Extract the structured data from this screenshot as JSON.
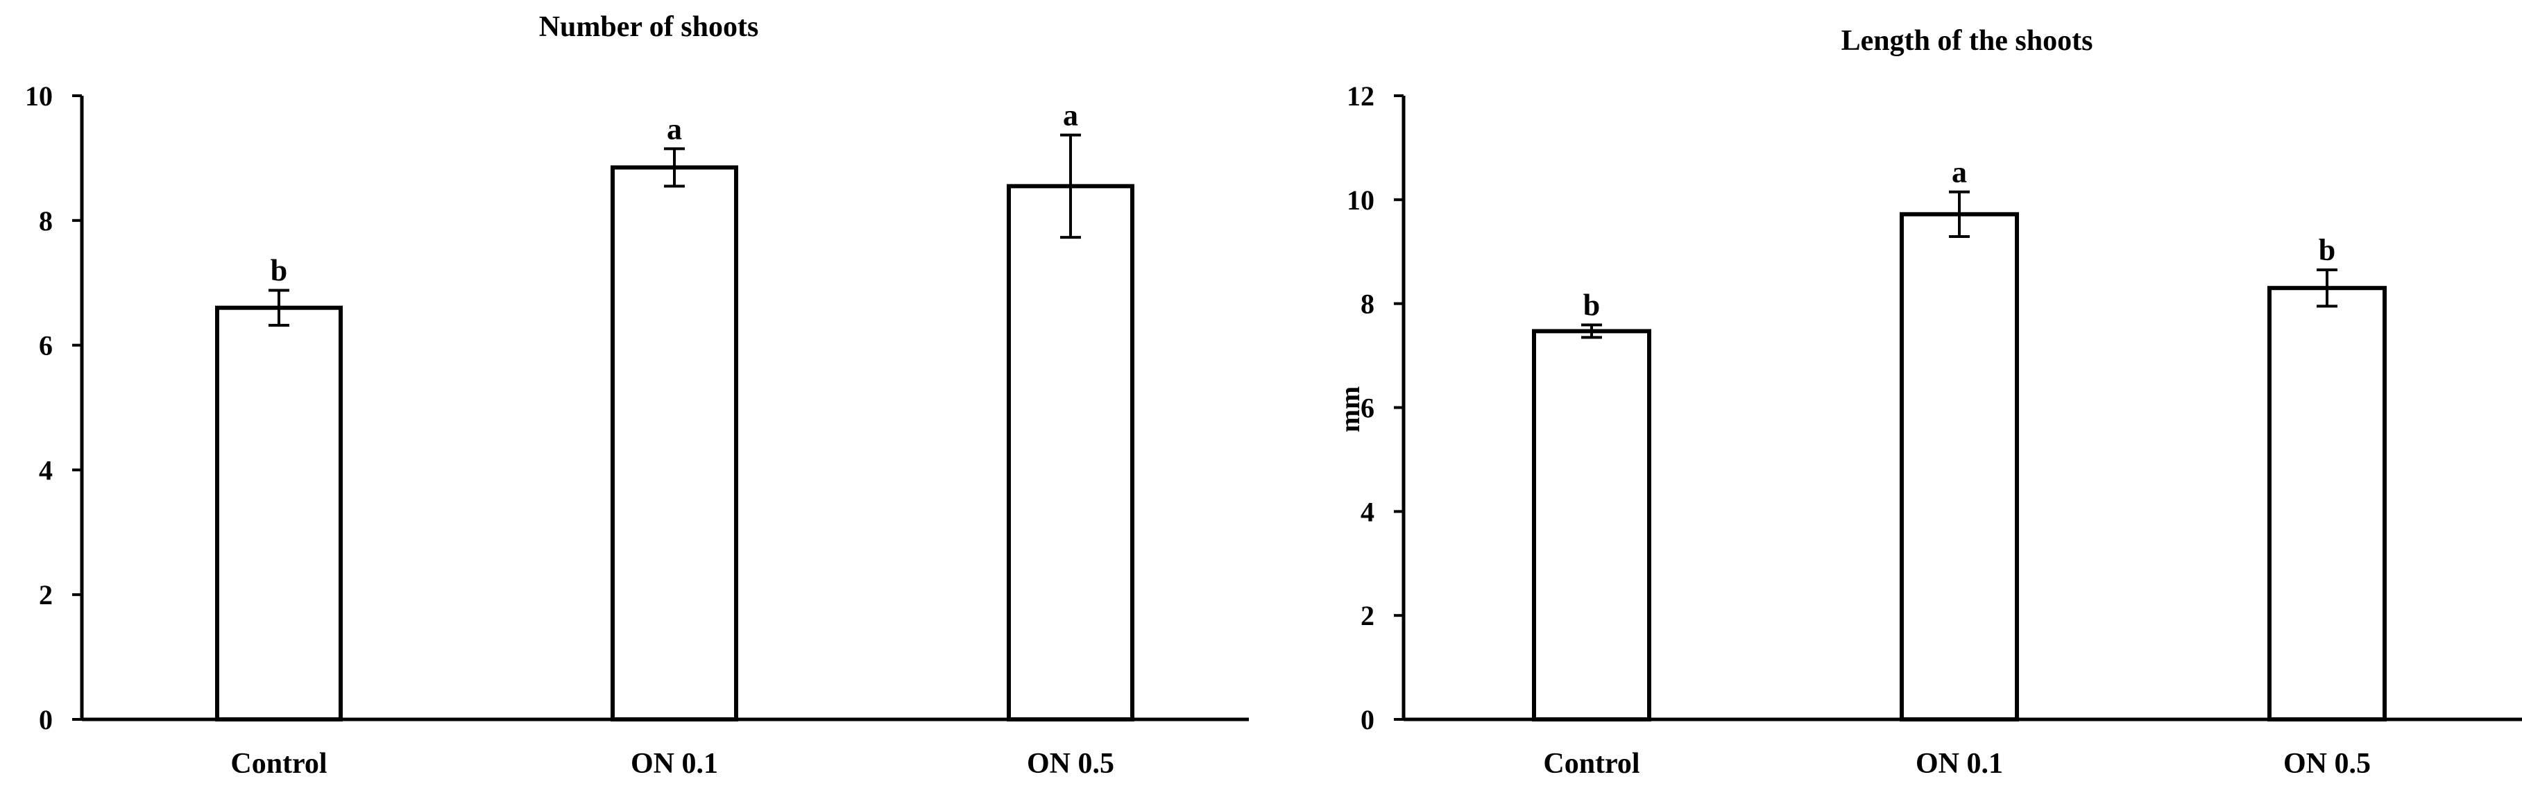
{
  "chart_data": [
    {
      "type": "bar",
      "title": "Number of shoots",
      "xlabel": "",
      "ylabel": "",
      "categories": [
        "Control",
        "ON 0.1",
        "ON 0.5"
      ],
      "values": [
        6.6,
        8.85,
        8.55
      ],
      "errors": [
        0.28,
        0.3,
        0.82
      ],
      "significance": [
        "b",
        "a",
        "a"
      ],
      "ylim": [
        0,
        10
      ],
      "yticks": [
        0,
        2,
        4,
        6,
        8,
        10
      ],
      "grid": false,
      "legend": "none",
      "bar_fill": "#ffffff",
      "bar_stroke": "#000000"
    },
    {
      "type": "bar",
      "title": "Length of the shoots",
      "xlabel": "",
      "ylabel": "mm",
      "categories": [
        "Control",
        "ON 0.1",
        "ON 0.5"
      ],
      "values": [
        7.47,
        9.72,
        8.3
      ],
      "errors": [
        0.12,
        0.43,
        0.35
      ],
      "significance": [
        "b",
        "a",
        "b"
      ],
      "ylim": [
        0,
        12
      ],
      "yticks": [
        0,
        2,
        4,
        6,
        8,
        10,
        12
      ],
      "grid": false,
      "legend": "none",
      "bar_fill": "#ffffff",
      "bar_stroke": "#000000"
    }
  ]
}
